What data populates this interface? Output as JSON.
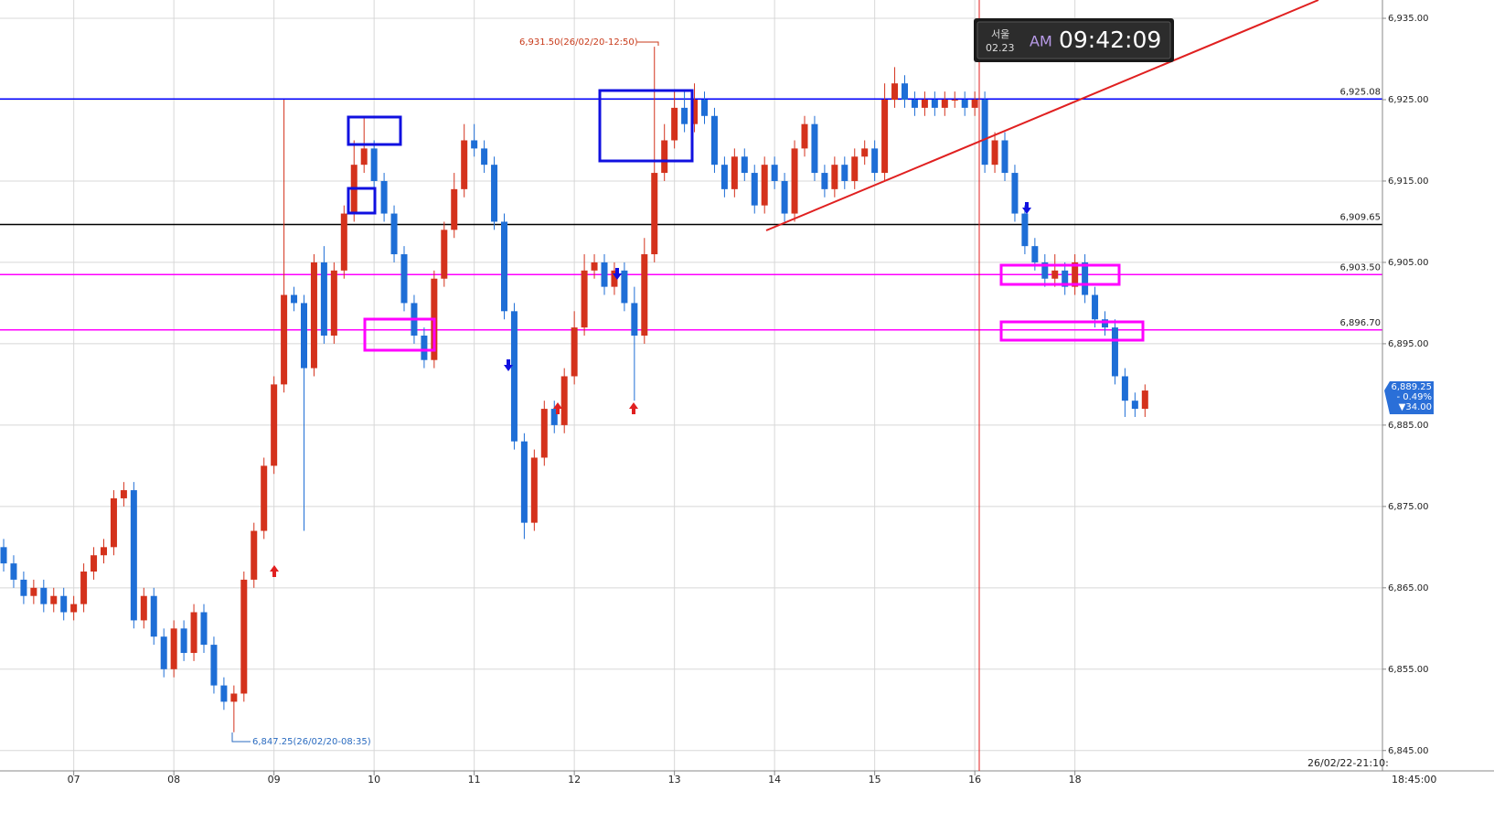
{
  "chart_data": {
    "type": "candlestick",
    "categories": [
      null,
      null,
      null,
      null,
      null,
      null,
      null,
      "07",
      null,
      null,
      null,
      null,
      null,
      null,
      null,
      null,
      null,
      "08",
      null,
      null,
      null,
      null,
      null,
      null,
      null,
      null,
      null,
      "09",
      null,
      null,
      null,
      null,
      null,
      null,
      null,
      null,
      null,
      "10",
      null,
      null,
      null,
      null,
      null,
      null,
      null,
      null,
      null,
      "11",
      null,
      null,
      null,
      null,
      null,
      null,
      null,
      null,
      null,
      "12",
      null,
      null,
      null,
      null,
      null,
      null,
      null,
      null,
      null,
      "13",
      null,
      null,
      null,
      null,
      null,
      null,
      null,
      null,
      null,
      "14",
      null,
      null,
      null,
      null,
      null,
      null,
      null,
      null,
      null,
      "15",
      null,
      null,
      null,
      null,
      null,
      null,
      null,
      null,
      null,
      "16",
      null,
      null,
      null,
      null,
      null,
      null,
      null,
      null,
      null,
      "18",
      null,
      null,
      null,
      null,
      null,
      null,
      null
    ],
    "open": [
      6870,
      6868,
      6866,
      6864,
      6865,
      6863,
      6864,
      6862,
      6863,
      6867,
      6869,
      6870,
      6876,
      6877,
      6861,
      6864,
      6859,
      6855,
      6860,
      6857,
      6862,
      6858,
      6853,
      6851,
      6852,
      6866,
      6872,
      6880,
      6890,
      6901,
      6900,
      6892,
      6905,
      6896,
      6904,
      6911,
      6917,
      6919,
      6915,
      6911,
      6906,
      6900,
      6896,
      6893,
      6903,
      6909,
      6914,
      6920,
      6919,
      6917,
      6910,
      6899,
      6883,
      6873,
      6881,
      6887,
      6885,
      6891,
      6897,
      6904,
      6905,
      6902,
      6904,
      6900,
      6896,
      6906,
      6916,
      6920,
      6924,
      6922,
      6925,
      6923,
      6917,
      6914,
      6918,
      6916,
      6912,
      6917,
      6915,
      6911,
      6919,
      6922,
      6916,
      6914,
      6917,
      6915,
      6918,
      6919,
      6916,
      6925,
      6927,
      6925,
      6924,
      6925,
      6924,
      6925,
      6925,
      6924,
      6925,
      6917,
      6920,
      6916,
      6911,
      6907,
      6905,
      6903,
      6904,
      6902,
      6905,
      6901,
      6898,
      6897,
      6891,
      6888,
      6887
    ],
    "high": [
      6871,
      6869,
      6867,
      6866,
      6866,
      6865,
      6865,
      6864,
      6868,
      6870,
      6871,
      6877,
      6878,
      6878,
      6865,
      6865,
      6860,
      6861,
      6861,
      6863,
      6863,
      6859,
      6854,
      6853,
      6867,
      6873,
      6881,
      6891,
      6925,
      6902,
      6901,
      6906,
      6907,
      6905,
      6912,
      6920,
      6923,
      6920,
      6916,
      6912,
      6907,
      6901,
      6897,
      6904,
      6910,
      6916,
      6922,
      6922,
      6920,
      6918,
      6911,
      6900,
      6884,
      6882,
      6888,
      6888,
      6892,
      6899,
      6906,
      6906,
      6906,
      6905,
      6905,
      6902,
      6908,
      6931.5,
      6922,
      6926,
      6926,
      6927,
      6926,
      6924,
      6918,
      6919,
      6919,
      6917,
      6918,
      6918,
      6916,
      6920,
      6923,
      6923,
      6917,
      6918,
      6918,
      6919,
      6920,
      6920,
      6927,
      6929,
      6928,
      6926,
      6926,
      6926,
      6926,
      6926,
      6926,
      6926,
      6926,
      6921,
      6921,
      6917,
      6912,
      6908,
      6906,
      6906,
      6905,
      6906,
      6906,
      6902,
      6899,
      6898,
      6892,
      6889,
      6890
    ],
    "low": [
      6867,
      6865,
      6863,
      6863,
      6862,
      6862,
      6861,
      6861,
      6862,
      6866,
      6868,
      6869,
      6875,
      6860,
      6860,
      6858,
      6854,
      6854,
      6856,
      6856,
      6857,
      6852,
      6850,
      6847.25,
      6851,
      6865,
      6871,
      6879,
      6889,
      6899,
      6872,
      6891,
      6895,
      6895,
      6903,
      6910,
      6916,
      6914,
      6910,
      6905,
      6899,
      6895,
      6892,
      6892,
      6902,
      6908,
      6913,
      6918,
      6916,
      6909,
      6898,
      6882,
      6871,
      6872,
      6880,
      6884,
      6884,
      6890,
      6896,
      6903,
      6901,
      6901,
      6899,
      6888,
      6895,
      6905,
      6915,
      6919,
      6921,
      6921,
      6922,
      6916,
      6913,
      6913,
      6915,
      6911,
      6911,
      6914,
      6910,
      6910,
      6918,
      6915,
      6913,
      6913,
      6914,
      6914,
      6917,
      6915,
      6915,
      6924,
      6924,
      6923,
      6923,
      6923,
      6923,
      6924,
      6923,
      6923,
      6916,
      6916,
      6915,
      6910,
      6906,
      6904,
      6902,
      6902,
      6901,
      6901,
      6900,
      6897,
      6896,
      6890,
      6886,
      6886,
      6886
    ],
    "close": [
      6868,
      6866,
      6864,
      6865,
      6863,
      6864,
      6862,
      6863,
      6867,
      6869,
      6870,
      6876,
      6877,
      6861,
      6864,
      6859,
      6855,
      6860,
      6857,
      6862,
      6858,
      6853,
      6851,
      6852,
      6866,
      6872,
      6880,
      6890,
      6901,
      6900,
      6892,
      6905,
      6896,
      6904,
      6911,
      6917,
      6919,
      6915,
      6911,
      6906,
      6900,
      6896,
      6893,
      6903,
      6909,
      6914,
      6920,
      6919,
      6917,
      6910,
      6899,
      6883,
      6873,
      6881,
      6887,
      6885,
      6891,
      6897,
      6904,
      6905,
      6902,
      6904,
      6900,
      6896,
      6906,
      6916,
      6920,
      6924,
      6922,
      6925,
      6923,
      6917,
      6914,
      6918,
      6916,
      6912,
      6917,
      6915,
      6911,
      6919,
      6922,
      6916,
      6914,
      6917,
      6915,
      6918,
      6919,
      6916,
      6925,
      6927,
      6925,
      6924,
      6925,
      6924,
      6925,
      6925,
      6924,
      6925,
      6917,
      6920,
      6916,
      6911,
      6907,
      6905,
      6903,
      6904,
      6902,
      6905,
      6901,
      6898,
      6897,
      6891,
      6888,
      6887,
      6889.25
    ],
    "up_color": "#d4321c",
    "down_color": "#1e6ed6",
    "ylim": [
      6842.5,
      6937.25
    ],
    "yticks": [
      {
        "value": 6845,
        "label": "6,845.00"
      },
      {
        "value": 6855,
        "label": "6,855.00"
      },
      {
        "value": 6865,
        "label": "6,865.00"
      },
      {
        "value": 6875,
        "label": "6,875.00"
      },
      {
        "value": 6885,
        "label": "6,885.00"
      },
      {
        "value": 6895,
        "label": "6,895.00"
      },
      {
        "value": 6905,
        "label": "6,905.00"
      },
      {
        "value": 6915,
        "label": "6,915.00"
      },
      {
        "value": 6925,
        "label": "6,925.00"
      },
      {
        "value": 6935,
        "label": "6,935.00"
      }
    ],
    "grid": true,
    "levels": [
      {
        "value": 6925.08,
        "label": "6,925.08",
        "color": "#0000ff"
      },
      {
        "value": 6909.65,
        "label": "6,909.65",
        "color": "#000000"
      },
      {
        "value": 6903.5,
        "label": "6,903.50",
        "color": "#ff00ff"
      },
      {
        "value": 6896.7,
        "label": "6,896.70",
        "color": "#ff00ff"
      }
    ],
    "annotations": [
      "6,931.50(26/02/20-12:50)",
      "6,847.25(26/02/20-08:35)"
    ],
    "last_price": {
      "value": 6889.25,
      "label": "6,889.25",
      "change_pct": "- 0.49%",
      "change": "▼34.00"
    },
    "footer": {
      "datetime": "26/02/22-21:10:",
      "time": "18:45:00"
    },
    "clock": {
      "city": "서울",
      "date": "02.23",
      "ampm": "AM",
      "time": "09:42:09"
    }
  }
}
